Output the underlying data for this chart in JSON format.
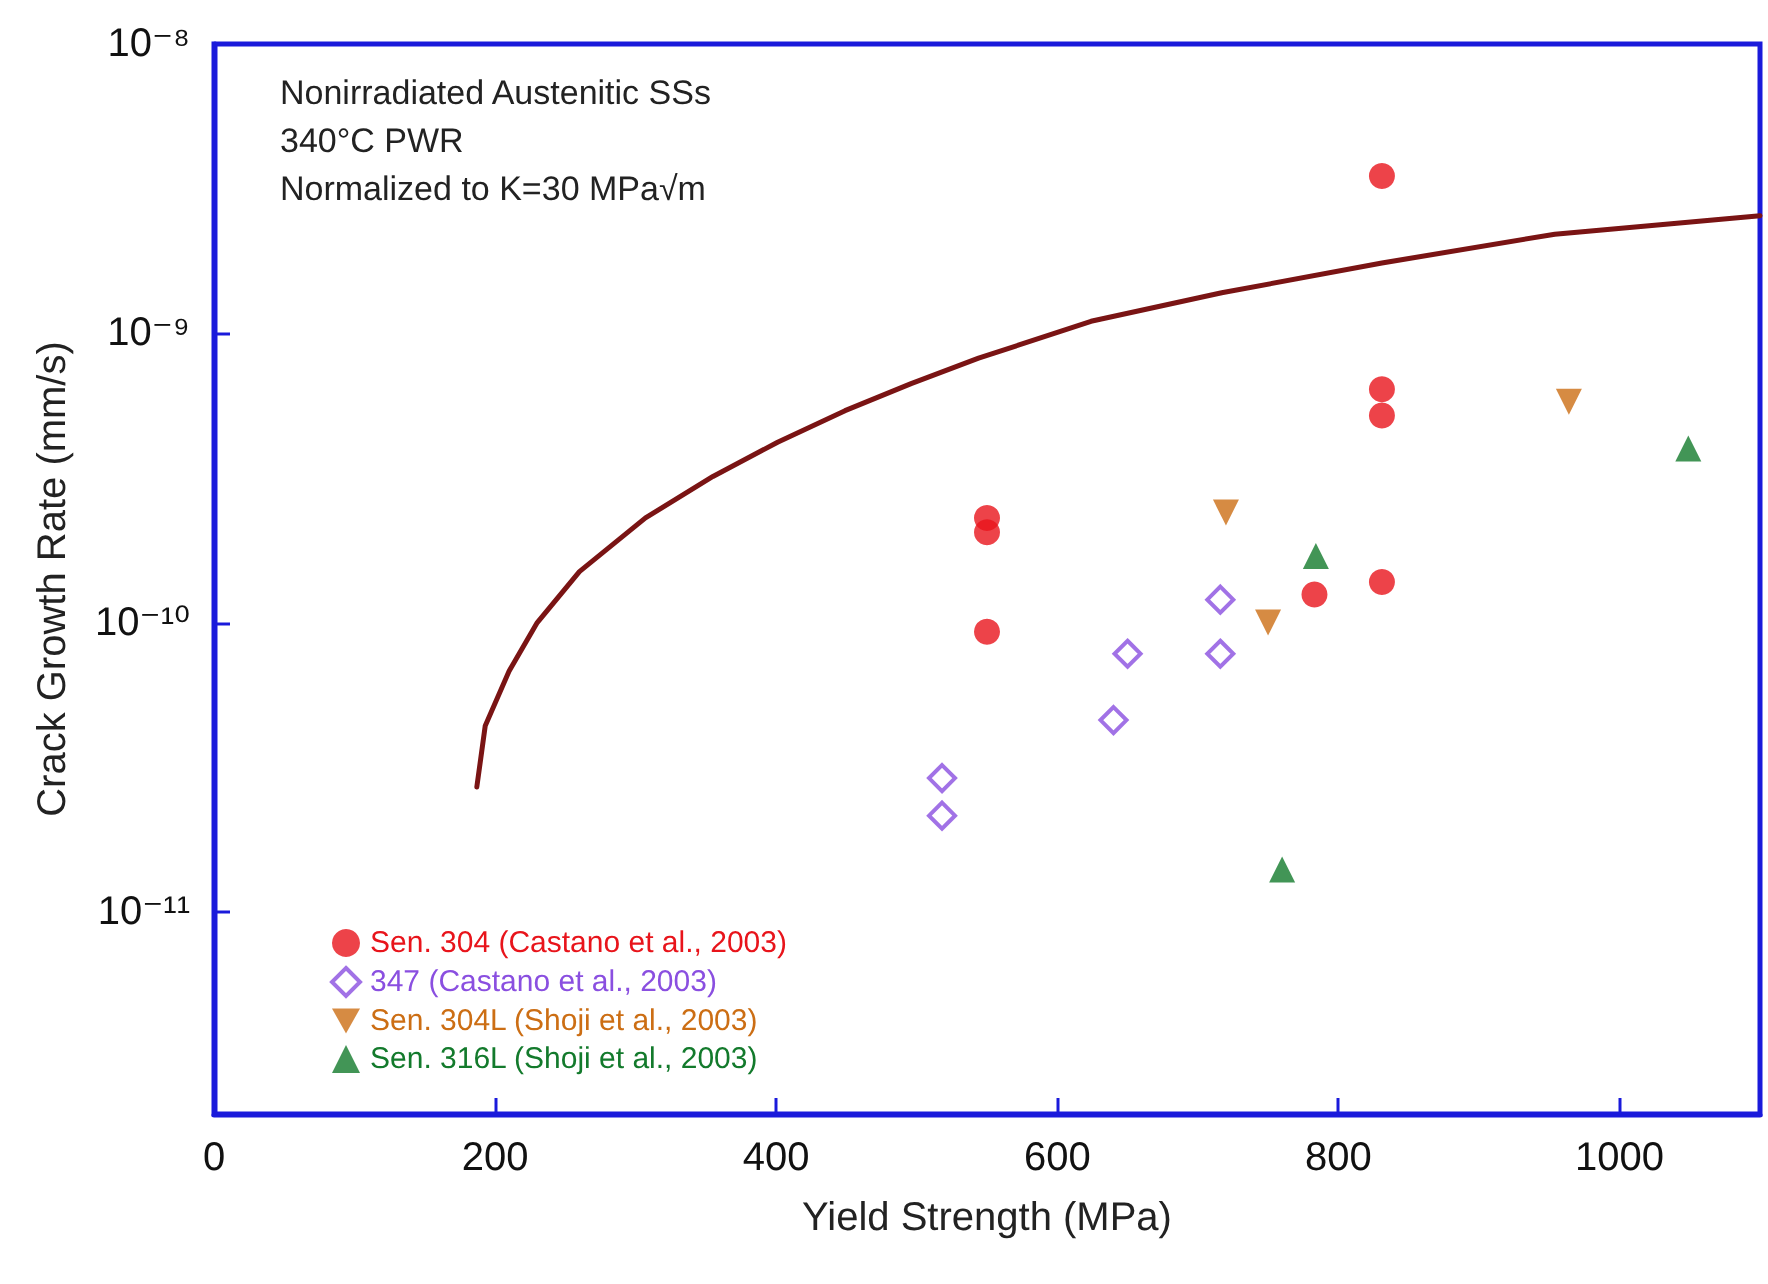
{
  "chart_data": {
    "type": "scatter",
    "xlabel": "Yield Strength (MPa)",
    "ylabel": "Crack Growth Rate (mm/s)",
    "annotations": [
      "Nonirradiated Austenitic SSs",
      "340°C PWR",
      "Normalized to K=30 MPa√m"
    ],
    "xlim": [
      0,
      1100
    ],
    "xticks": [
      0,
      200,
      400,
      600,
      800,
      1000
    ],
    "ylim": [
      2e-12,
      1e-08
    ],
    "yticks": [
      {
        "value": 1e-11,
        "label": "10⁻¹¹"
      },
      {
        "value": 1e-10,
        "label": "10⁻¹⁰"
      },
      {
        "value": 1e-09,
        "label": "10⁻⁹"
      },
      {
        "value": 1e-08,
        "label": "10⁻⁸"
      }
    ],
    "log": "y",
    "grid": false,
    "legend": "bottom left",
    "series": [
      {
        "name": "Sen. 304 (Castano et al., 2003)",
        "color": "#e8141b",
        "marker": "circle",
        "x": [
          831,
          831,
          831,
          550,
          550,
          550,
          783,
          831
        ],
        "values": [
          3.5e-09,
          6.4e-10,
          5.2e-10,
          2.3e-10,
          2.05e-10,
          9.3e-11,
          1.25e-10,
          1.38e-10
        ]
      },
      {
        "name": "347 (Castano et al., 2003)",
        "color": "#8a4fe0",
        "marker": "diamond-open",
        "x": [
          716,
          716,
          650,
          640,
          518,
          518
        ],
        "values": [
          1.2e-10,
          7.8e-11,
          7.8e-11,
          4.6e-11,
          2.9e-11,
          2.15e-11
        ]
      },
      {
        "name": "Sen. 304L (Shoji et al., 2003)",
        "color": "#cc6e14",
        "marker": "triangle-down",
        "x": [
          964,
          720,
          750
        ],
        "values": [
          5.8e-10,
          2.4e-10,
          1e-10
        ]
      },
      {
        "name": "Sen. 316L (Shoji et al., 2003)",
        "color": "#137a2c",
        "marker": "triangle",
        "x": [
          1049,
          784,
          760
        ],
        "values": [
          4e-10,
          1.7e-10,
          1.4e-11
        ]
      },
      {
        "type": "line",
        "color": "#7a1414",
        "marker": "none",
        "line_style": "solid",
        "x": [
          187,
          193,
          210,
          230,
          260,
          307,
          355,
          401,
          449,
          496,
          544,
          624,
          717,
          831,
          954,
          1100
        ],
        "values": [
          2.7e-11,
          4.4e-11,
          6.8e-11,
          1e-10,
          1.5e-10,
          2.3e-10,
          3.2e-10,
          4.2e-10,
          5.4e-10,
          6.7e-10,
          8.2e-10,
          1.1e-09,
          1.38e-09,
          1.75e-09,
          2.2e-09,
          2.55e-09
        ]
      }
    ]
  }
}
